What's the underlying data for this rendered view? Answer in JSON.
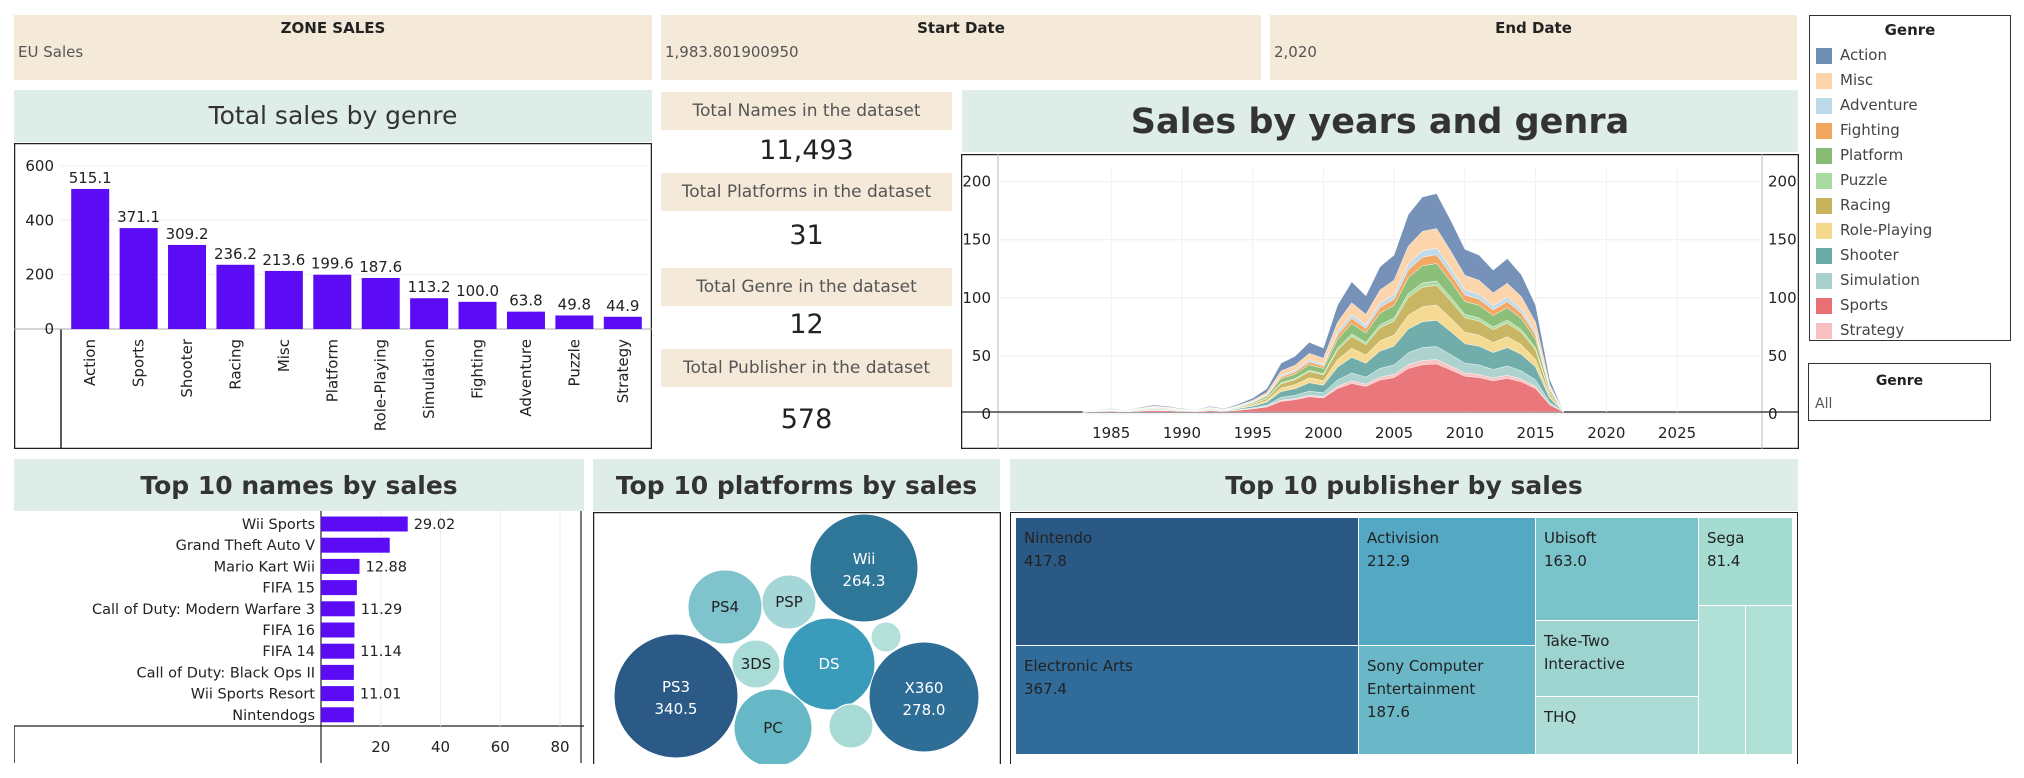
{
  "filters": {
    "zone": {
      "title": "ZONE SALES",
      "value": "EU Sales"
    },
    "start": {
      "title": "Start Date",
      "value": "1,983.801900950"
    },
    "end": {
      "title": "End Date",
      "value": "2,020"
    }
  },
  "kpis": [
    {
      "label": "Total Names in the dataset",
      "value": "11,493"
    },
    {
      "label": "Total Platforms in the dataset",
      "value": "31"
    },
    {
      "label": "Total Genre in the dataset",
      "value": "12"
    },
    {
      "label": "Total Publisher in the dataset",
      "value": "578"
    }
  ],
  "legend": {
    "title": "Genre",
    "items": [
      {
        "label": "Action",
        "color": "#6f8db5"
      },
      {
        "label": "Misc",
        "color": "#fdd3a8"
      },
      {
        "label": "Adventure",
        "color": "#bcd9ea"
      },
      {
        "label": "Fighting",
        "color": "#f2a55e"
      },
      {
        "label": "Platform",
        "color": "#86bc73"
      },
      {
        "label": "Puzzle",
        "color": "#a9dba0"
      },
      {
        "label": "Racing",
        "color": "#c7b35d"
      },
      {
        "label": "Role-Playing",
        "color": "#f4d98d"
      },
      {
        "label": "Shooter",
        "color": "#6aaaa7"
      },
      {
        "label": "Simulation",
        "color": "#a9d1cc"
      },
      {
        "label": "Sports",
        "color": "#e87074"
      },
      {
        "label": "Strategy",
        "color": "#f8c1c1"
      }
    ]
  },
  "genre_filter": {
    "title": "Genre",
    "value": "All"
  },
  "chart_data": [
    {
      "type": "bar",
      "title": "Total sales by genre",
      "categories": [
        "Action",
        "Sports",
        "Shooter",
        "Racing",
        "Misc",
        "Platform",
        "Role-Playing",
        "Simulation",
        "Fighting",
        "Adventure",
        "Puzzle",
        "Strategy"
      ],
      "values": [
        515.1,
        371.1,
        309.2,
        236.2,
        213.6,
        199.6,
        187.6,
        113.2,
        100.0,
        63.8,
        49.8,
        44.9
      ],
      "value_labels": [
        "515.1",
        "371.1",
        "309.2",
        "236.2",
        "213.6",
        "199.6",
        "187.6",
        "113.2",
        "100.0",
        "63.8",
        "49.8",
        "44.9"
      ],
      "yticks": [
        "600",
        "400",
        "200",
        "0"
      ],
      "ylim": [
        0,
        640
      ],
      "color": "#5b0cf5"
    },
    {
      "type": "area",
      "title": "Sales by years and genra",
      "x": [
        1983,
        1984,
        1985,
        1986,
        1987,
        1988,
        1989,
        1990,
        1991,
        1992,
        1993,
        1994,
        1995,
        1996,
        1997,
        1998,
        1999,
        2000,
        2001,
        2002,
        2003,
        2004,
        2005,
        2006,
        2007,
        2008,
        2009,
        2010,
        2011,
        2012,
        2013,
        2014,
        2015,
        2016,
        2017
      ],
      "totals": [
        0,
        2,
        3,
        1,
        4,
        6,
        5,
        3,
        2,
        5,
        3,
        7,
        12,
        20,
        42,
        48,
        60,
        55,
        92,
        112,
        100,
        125,
        135,
        170,
        185,
        188,
        165,
        140,
        135,
        122,
        132,
        118,
        92,
        28,
        0
      ],
      "series_order": [
        "Sports",
        "Strategy",
        "Simulation",
        "Shooter",
        "Role-Playing",
        "Racing",
        "Puzzle",
        "Platform",
        "Fighting",
        "Adventure",
        "Misc",
        "Action"
      ],
      "shares": [
        0.22,
        0.02,
        0.06,
        0.12,
        0.07,
        0.09,
        0.02,
        0.08,
        0.04,
        0.03,
        0.09,
        0.16
      ],
      "xticks": [
        "1985",
        "1990",
        "1995",
        "2000",
        "2005",
        "2010",
        "2015",
        "2020",
        "2025"
      ],
      "yticks": [
        "200",
        "150",
        "100",
        "50",
        "0"
      ],
      "xlim": [
        1977,
        2031
      ],
      "ylim": [
        0,
        210
      ]
    },
    {
      "type": "bar",
      "orientation": "horizontal",
      "title": "Top 10 names by sales",
      "categories": [
        "Wii Sports",
        "Grand Theft Auto V",
        "Mario Kart Wii",
        "FIFA 15",
        "Call of Duty: Modern Warfare 3",
        "FIFA 16",
        "FIFA 14",
        "Call of Duty: Black Ops II",
        "Wii Sports Resort",
        "Nintendogs"
      ],
      "values": [
        29.02,
        23.0,
        12.88,
        12.0,
        11.29,
        11.2,
        11.14,
        11.0,
        11.01,
        11.0
      ],
      "value_labels": [
        "29.02",
        "",
        "12.88",
        "",
        "11.29",
        "",
        "11.14",
        "",
        "11.01",
        ""
      ],
      "xticks": [
        "20",
        "40",
        "60",
        "80"
      ],
      "xlim": [
        0,
        85
      ],
      "color": "#5b0cf5"
    },
    {
      "type": "bubble",
      "title": "Top 10 platforms by sales",
      "bubbles": [
        {
          "label": "Wii",
          "value": "264.3",
          "color": "#2f7799"
        },
        {
          "label": "PS4",
          "value": "",
          "color": "#7fc3cc"
        },
        {
          "label": "PSP",
          "value": "",
          "color": "#a5d7d8"
        },
        {
          "label": "3DS",
          "value": "",
          "color": "#a9dcd7"
        },
        {
          "label": "DS",
          "value": "",
          "color": "#3a9bba"
        },
        {
          "label": "PS3",
          "value": "340.5",
          "color": "#2b5a87"
        },
        {
          "label": "X360",
          "value": "278.0",
          "color": "#2e6e96"
        },
        {
          "label": "PC",
          "value": "",
          "color": "#67b8c6"
        },
        {
          "label": "",
          "value": "",
          "color": "#b4e0da"
        },
        {
          "label": "",
          "value": "",
          "color": "#a8dbd5"
        }
      ]
    },
    {
      "type": "treemap",
      "title": "Top 10 publisher by sales",
      "items": [
        {
          "name": "Nintendo",
          "value": "417.8",
          "color": "#2b5986"
        },
        {
          "name": "Electronic Arts",
          "value": "367.4",
          "color": "#306b99"
        },
        {
          "name": "Activision",
          "value": "212.9",
          "color": "#55a8c3"
        },
        {
          "name": "Sony Computer Entertainment",
          "value": "187.6",
          "color": "#6ab7c7"
        },
        {
          "name": "Ubisoft",
          "value": "163.0",
          "color": "#7bc3ca"
        },
        {
          "name": "Take-Two Interactive",
          "value": "",
          "color": "#9dd4cf"
        },
        {
          "name": "THQ",
          "value": "",
          "color": "#acdcd5"
        },
        {
          "name": "Sega",
          "value": "81.4",
          "color": "#a4dcd1"
        },
        {
          "name": "",
          "value": "",
          "color": "#b0e0d6"
        },
        {
          "name": "",
          "value": "",
          "color": "#b0e0d6"
        }
      ]
    }
  ]
}
